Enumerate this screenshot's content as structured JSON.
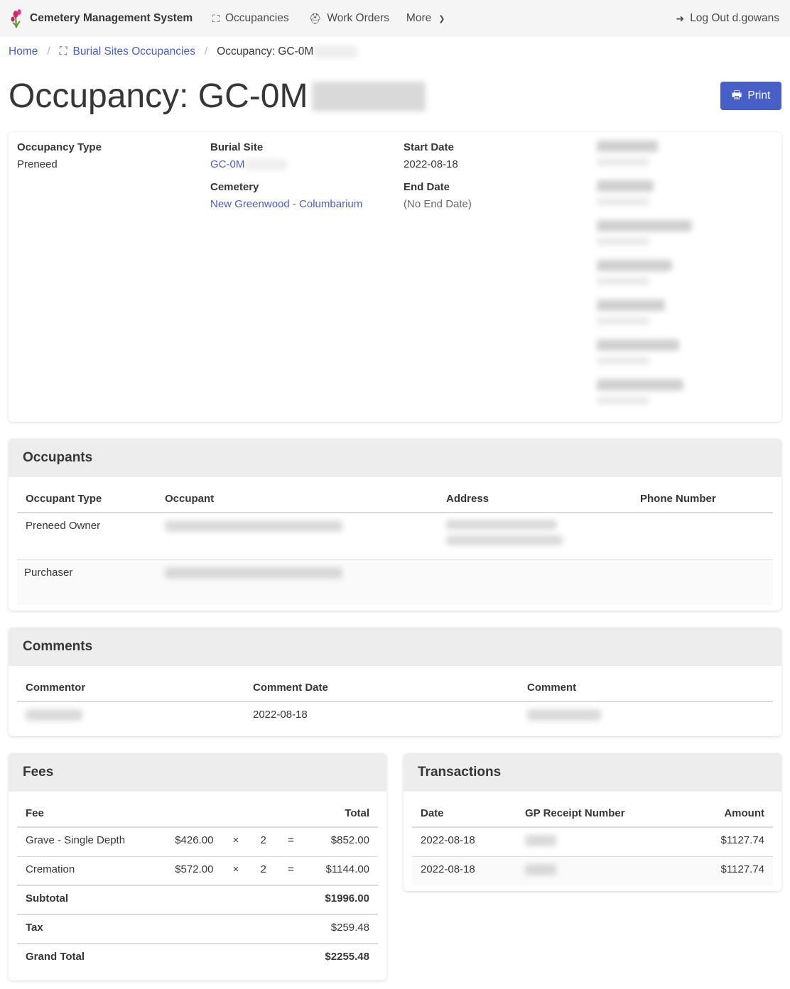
{
  "nav": {
    "brand": "Cemetery Management System",
    "occupancies": "Occupancies",
    "work_orders": "Work Orders",
    "more": "More",
    "logout": "Log Out d.gowans"
  },
  "breadcrumb": {
    "home": "Home",
    "burial_sites": "Burial Sites Occupancies",
    "current": "Occupancy: GC-0M"
  },
  "page": {
    "title": "Occupancy: GC-0M",
    "print": "Print"
  },
  "details": {
    "occupancy_type_label": "Occupancy Type",
    "occupancy_type": "Preneed",
    "burial_site_label": "Burial Site",
    "burial_site": "GC-0M",
    "cemetery_label": "Cemetery",
    "cemetery": "New Greenwood - Columbarium",
    "start_date_label": "Start Date",
    "start_date": "2022-08-18",
    "end_date_label": "End Date",
    "end_date": "(No End Date)"
  },
  "occupants": {
    "title": "Occupants",
    "headers": [
      "Occupant Type",
      "Occupant",
      "Address",
      "Phone Number"
    ],
    "rows": [
      {
        "type": "Preneed Owner"
      },
      {
        "type": "Purchaser"
      }
    ]
  },
  "comments": {
    "title": "Comments",
    "headers": [
      "Commentor",
      "Comment Date",
      "Comment"
    ],
    "rows": [
      {
        "date": "2022-08-18"
      }
    ]
  },
  "fees": {
    "title": "Fees",
    "headers": {
      "fee": "Fee",
      "total": "Total"
    },
    "rows": [
      {
        "name": "Grave - Single Depth",
        "unit": "$426.00",
        "x": "×",
        "qty": "2",
        "eq": "=",
        "total": "$852.00"
      },
      {
        "name": "Cremation",
        "unit": "$572.00",
        "x": "×",
        "qty": "2",
        "eq": "=",
        "total": "$1144.00"
      }
    ],
    "subtotal_label": "Subtotal",
    "subtotal": "$1996.00",
    "tax_label": "Tax",
    "tax": "$259.48",
    "grand_label": "Grand Total",
    "grand": "$2255.48"
  },
  "transactions": {
    "title": "Transactions",
    "headers": [
      "Date",
      "GP Receipt Number",
      "Amount"
    ],
    "rows": [
      {
        "date": "2022-08-18",
        "amount": "$1127.74"
      },
      {
        "date": "2022-08-18",
        "amount": "$1127.74"
      }
    ]
  },
  "colors": {
    "primary": "#485fc7",
    "nav_bg": "#f5f5f5",
    "panel_header": "#ededed"
  }
}
